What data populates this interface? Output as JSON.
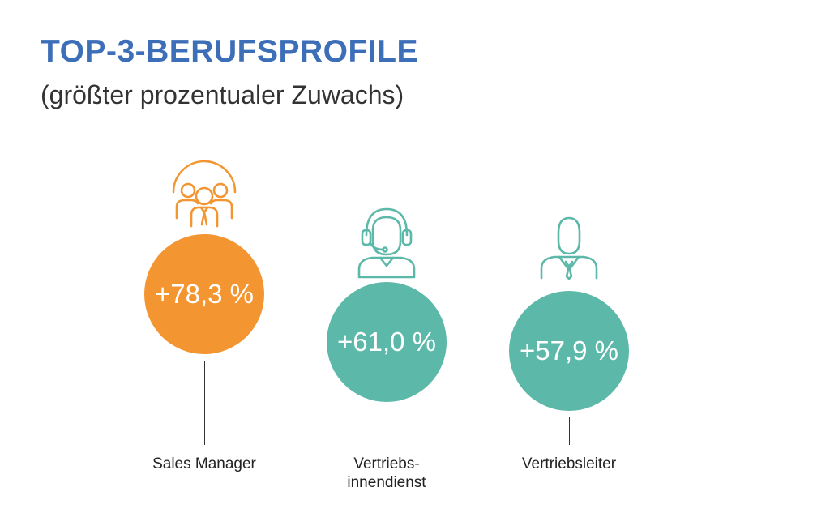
{
  "title": "TOP-3-BERUFSPROFILE",
  "subtitle": "(größter prozentualer Zuwachs)",
  "colors": {
    "title": "#3d6eb8",
    "highlight": "#f39531",
    "teal": "#5cb8a8"
  },
  "chart_data": {
    "type": "bubble",
    "title": "TOP-3-BERUFSPROFILE",
    "subtitle": "(größter prozentualer Zuwachs)",
    "unit": "%",
    "categories": [
      "Sales Manager",
      "Vertriebs-\ninnendienst",
      "Vertriebsleiter"
    ],
    "values": [
      78.3,
      61.0,
      57.9
    ],
    "value_labels": [
      "+78,3 %",
      "+61,0 %",
      "+57,9 %"
    ],
    "icons": [
      "team-group-icon",
      "headset-agent-icon",
      "businessman-icon"
    ],
    "colors": [
      "#f39531",
      "#5cb8a8",
      "#5cb8a8"
    ]
  }
}
